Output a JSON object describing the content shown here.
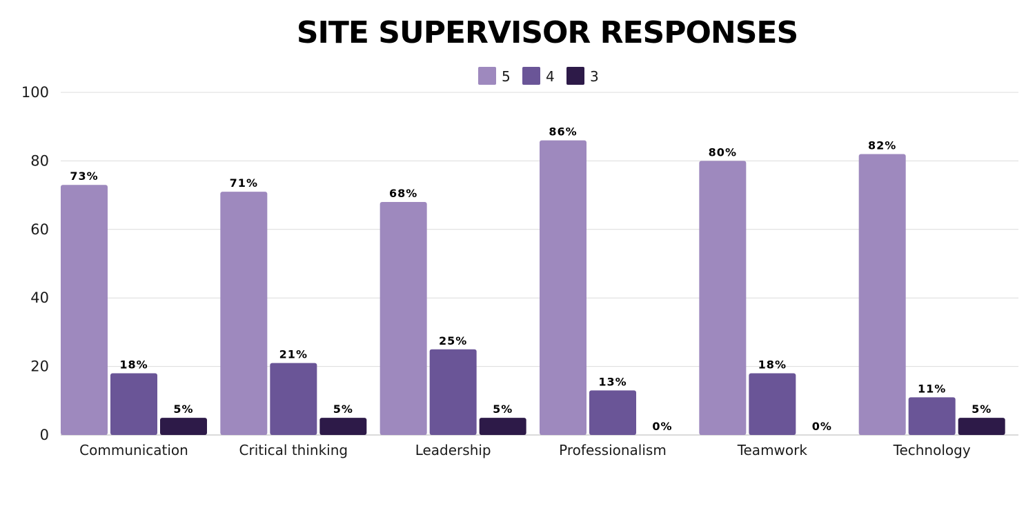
{
  "chart_data": {
    "type": "bar",
    "title": "SITE SUPERVISOR RESPONSES",
    "categories": [
      "Communication",
      "Critical thinking",
      "Leadership",
      "Professionalism",
      "Teamwork",
      "Technology"
    ],
    "series": [
      {
        "name": "5",
        "values": [
          73,
          71,
          68,
          86,
          80,
          82
        ],
        "labels": [
          "73%",
          "71%",
          "68%",
          "86%",
          "80%",
          "82%"
        ],
        "color": "#9e89be"
      },
      {
        "name": "4",
        "values": [
          18,
          21,
          25,
          13,
          18,
          11
        ],
        "labels": [
          "18%",
          "21%",
          "25%",
          "13%",
          "18%",
          "11%"
        ],
        "color": "#6a5597"
      },
      {
        "name": "3",
        "values": [
          5,
          5,
          5,
          0,
          0,
          5
        ],
        "labels": [
          "5%",
          "5%",
          "5%",
          "0%",
          "0%",
          "5%"
        ],
        "color": "#2d1a48"
      }
    ],
    "yticks": [
      0,
      20,
      40,
      60,
      80,
      100
    ],
    "ylim": [
      0,
      100
    ],
    "grid": true,
    "legend": "top-center",
    "xlabel": "",
    "ylabel": ""
  }
}
